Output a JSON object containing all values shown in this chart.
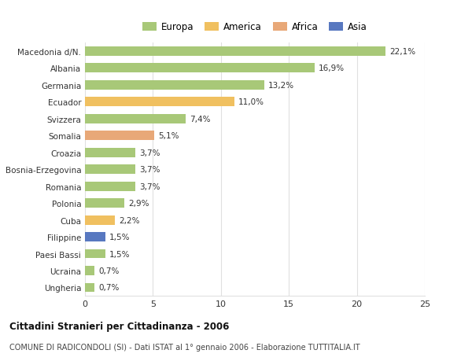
{
  "categories": [
    "Macedonia d/N.",
    "Albania",
    "Germania",
    "Ecuador",
    "Svizzera",
    "Somalia",
    "Croazia",
    "Bosnia-Erzegovina",
    "Romania",
    "Polonia",
    "Cuba",
    "Filippine",
    "Paesi Bassi",
    "Ucraina",
    "Ungheria"
  ],
  "values": [
    22.1,
    16.9,
    13.2,
    11.0,
    7.4,
    5.1,
    3.7,
    3.7,
    3.7,
    2.9,
    2.2,
    1.5,
    1.5,
    0.7,
    0.7
  ],
  "labels": [
    "22,1%",
    "16,9%",
    "13,2%",
    "11,0%",
    "7,4%",
    "5,1%",
    "3,7%",
    "3,7%",
    "3,7%",
    "2,9%",
    "2,2%",
    "1,5%",
    "1,5%",
    "0,7%",
    "0,7%"
  ],
  "colors": [
    "#a8c878",
    "#a8c878",
    "#a8c878",
    "#f0c060",
    "#a8c878",
    "#e8a878",
    "#a8c878",
    "#a8c878",
    "#a8c878",
    "#a8c878",
    "#f0c060",
    "#5878c0",
    "#a8c878",
    "#a8c878",
    "#a8c878"
  ],
  "legend_labels": [
    "Europa",
    "America",
    "Africa",
    "Asia"
  ],
  "legend_colors": [
    "#a8c878",
    "#f0c060",
    "#e8a878",
    "#5878c0"
  ],
  "xlim": [
    0,
    25
  ],
  "xticks": [
    0,
    5,
    10,
    15,
    20,
    25
  ],
  "title": "Cittadini Stranieri per Cittadinanza - 2006",
  "subtitle": "COMUNE DI RADICONDOLI (SI) - Dati ISTAT al 1° gennaio 2006 - Elaborazione TUTTITALIA.IT",
  "background_color": "#ffffff",
  "bar_height": 0.55,
  "grid_color": "#e0e0e0",
  "label_fontsize": 7.5,
  "ytick_fontsize": 7.5,
  "xtick_fontsize": 8
}
